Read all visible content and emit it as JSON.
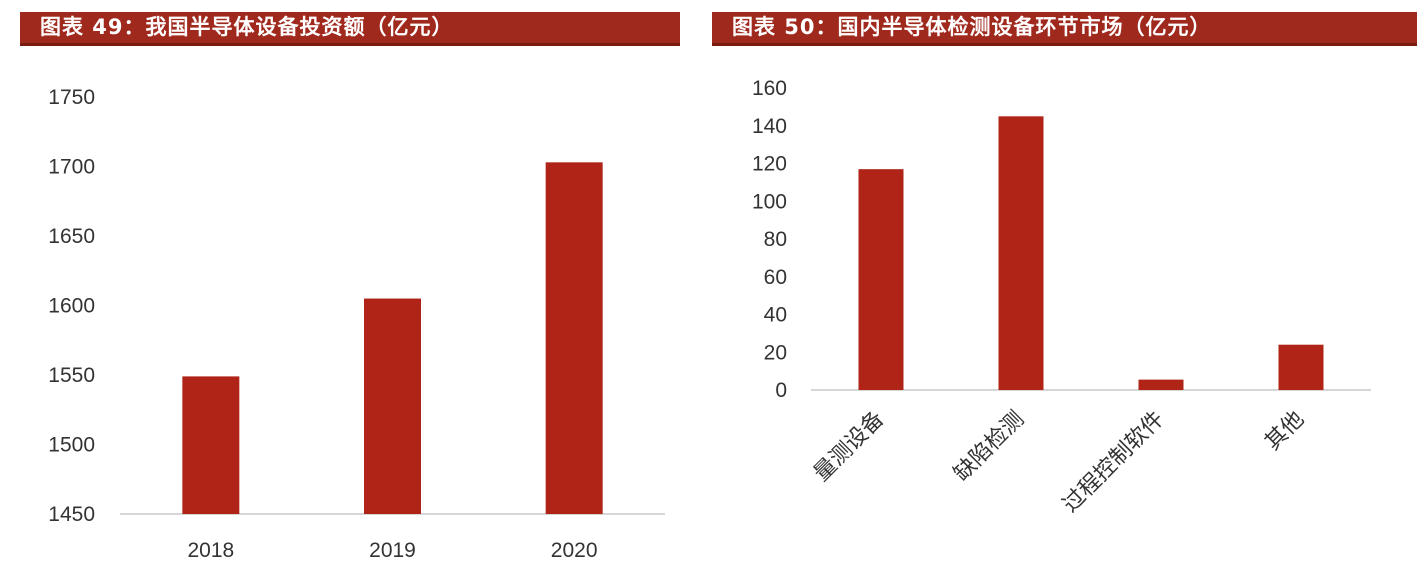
{
  "charts": [
    {
      "title": "图表 49：我国半导体设备投资额（亿元）",
      "chart_data": {
        "type": "bar",
        "categories": [
          "2018",
          "2019",
          "2020"
        ],
        "values": [
          1549,
          1605,
          1703
        ],
        "ylim": [
          1450,
          1750
        ],
        "yticks": [
          1450,
          1500,
          1550,
          1600,
          1650,
          1700,
          1750
        ],
        "title": "图表 49：我国半导体设备投资额（亿元）",
        "xlabel": "",
        "ylabel": "",
        "grid": false,
        "color": "#b02418"
      }
    },
    {
      "title": "图表 50：国内半导体检测设备环节市场（亿元）",
      "chart_data": {
        "type": "bar",
        "categories": [
          "量测设备",
          "缺陷检测",
          "过程控制软件",
          "其他"
        ],
        "values": [
          117,
          145,
          5.5,
          24
        ],
        "ylim": [
          0,
          160
        ],
        "yticks": [
          0,
          20,
          40,
          60,
          80,
          100,
          120,
          140,
          160
        ],
        "title": "图表 50：国内半导体检测设备环节市场（亿元）",
        "xlabel": "",
        "ylabel": "",
        "grid": false,
        "color": "#b02418"
      }
    }
  ]
}
